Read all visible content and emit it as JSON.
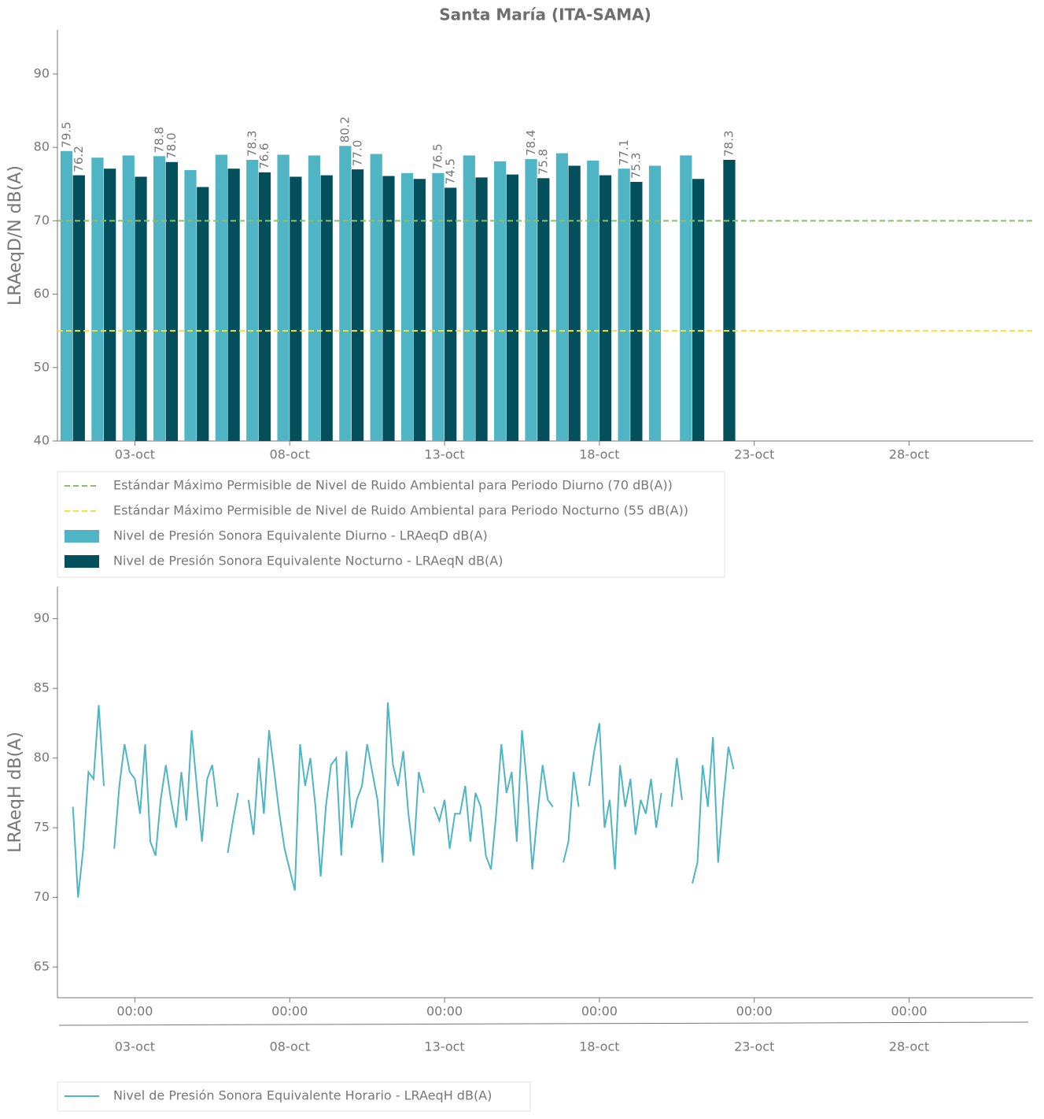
{
  "chart_data": [
    {
      "type": "bar",
      "title": "Santa María (ITA-SAMA)",
      "ylabel": "LRAeqD/N dB(A)",
      "x": [
        "01-oct",
        "02-oct",
        "03-oct",
        "04-oct",
        "05-oct",
        "06-oct",
        "07-oct",
        "08-oct",
        "09-oct",
        "10-oct",
        "11-oct",
        "12-oct",
        "13-oct",
        "14-oct",
        "15-oct",
        "16-oct",
        "17-oct",
        "18-oct",
        "19-oct",
        "20-oct",
        "21-oct",
        "22-oct"
      ],
      "series": [
        {
          "name": "Nivel de Presión Sonora Equivalente Diurno - LRAeqD dB(A)",
          "color": "#4fb5c4",
          "values": [
            79.5,
            78.6,
            78.9,
            78.8,
            76.9,
            79.0,
            78.3,
            79.0,
            78.9,
            80.2,
            79.1,
            76.5,
            76.5,
            78.9,
            78.1,
            78.4,
            79.2,
            78.2,
            77.1,
            77.5,
            78.9,
            null
          ],
          "value_labels": [
            "79.5",
            null,
            null,
            "78.8",
            null,
            null,
            "78.3",
            null,
            null,
            "80.2",
            null,
            null,
            "76.5",
            null,
            null,
            "78.4",
            null,
            null,
            "77.1",
            null,
            null,
            null
          ]
        },
        {
          "name": "Nivel de Presión Sonora Equivalente Nocturno - LRAeqN dB(A)",
          "color": "#03505c",
          "values": [
            76.2,
            77.1,
            76.0,
            78.0,
            74.6,
            77.1,
            76.6,
            76.0,
            76.2,
            77.0,
            76.1,
            75.7,
            74.5,
            75.9,
            76.3,
            75.8,
            77.5,
            76.2,
            75.3,
            null,
            75.7,
            78.3
          ],
          "value_labels": [
            "76.2",
            null,
            null,
            "78.0",
            null,
            null,
            "76.6",
            null,
            null,
            "77.0",
            null,
            null,
            "74.5",
            null,
            null,
            "75.8",
            null,
            null,
            "75.3",
            null,
            null,
            "78.3"
          ]
        }
      ],
      "hlines": [
        {
          "name": "Estándar Máximo Permisible de Nivel de Ruido Ambiental para Periodo Diurno (70 dB(A))",
          "value": 70,
          "color": "#8bbf6a"
        },
        {
          "name": "Estándar Máximo Permisible de Nivel de Ruido Ambiental para Periodo Nocturno (55 dB(A))",
          "value": 55,
          "color": "#f2e13a"
        }
      ],
      "xlim": [
        "30-sep 12:00",
        "01-nov 00:00"
      ],
      "xticks": [
        "03-oct",
        "08-oct",
        "13-oct",
        "18-oct",
        "23-oct",
        "28-oct"
      ],
      "ylim": [
        40,
        96
      ],
      "yticks": [
        40,
        50,
        60,
        70,
        80,
        90
      ]
    },
    {
      "type": "line",
      "ylabel": "LRAeqH dB(A)",
      "x": [
        "01-oct 00:00",
        "01-oct 04:00",
        "01-oct 08:00",
        "01-oct 12:00",
        "01-oct 16:00",
        "01-oct 20:00",
        "02-oct 00:00",
        "02-oct 04:00",
        "02-oct 08:00",
        "02-oct 12:00",
        "02-oct 16:00",
        "02-oct 20:00",
        "03-oct 00:00",
        "03-oct 04:00",
        "03-oct 08:00",
        "03-oct 12:00",
        "03-oct 16:00",
        "03-oct 20:00",
        "04-oct 00:00",
        "04-oct 04:00",
        "04-oct 08:00",
        "04-oct 12:00",
        "04-oct 16:00",
        "04-oct 20:00",
        "05-oct 00:00",
        "05-oct 04:00",
        "05-oct 08:00",
        "05-oct 12:00",
        "05-oct 16:00",
        "05-oct 20:00",
        "06-oct 00:00",
        "06-oct 04:00",
        "06-oct 08:00",
        "06-oct 12:00",
        "06-oct 16:00",
        "06-oct 20:00",
        "07-oct 00:00",
        "07-oct 04:00",
        "07-oct 08:00",
        "07-oct 12:00",
        "07-oct 16:00",
        "07-oct 20:00",
        "08-oct 00:00",
        "08-oct 04:00",
        "08-oct 08:00",
        "08-oct 12:00",
        "08-oct 16:00",
        "08-oct 20:00",
        "09-oct 00:00",
        "09-oct 04:00",
        "09-oct 08:00",
        "09-oct 12:00",
        "09-oct 16:00",
        "09-oct 20:00",
        "10-oct 00:00",
        "10-oct 04:00",
        "10-oct 08:00",
        "10-oct 12:00",
        "10-oct 16:00",
        "10-oct 20:00",
        "11-oct 00:00",
        "11-oct 04:00",
        "11-oct 08:00",
        "11-oct 12:00",
        "11-oct 16:00",
        "11-oct 20:00",
        "12-oct 00:00",
        "12-oct 04:00",
        "12-oct 08:00",
        "12-oct 12:00",
        "12-oct 16:00",
        "12-oct 20:00",
        "13-oct 00:00",
        "13-oct 04:00",
        "13-oct 08:00",
        "13-oct 12:00",
        "13-oct 16:00",
        "13-oct 20:00",
        "14-oct 00:00",
        "14-oct 04:00",
        "14-oct 08:00",
        "14-oct 12:00",
        "14-oct 16:00",
        "14-oct 20:00",
        "15-oct 00:00",
        "15-oct 04:00",
        "15-oct 08:00",
        "15-oct 12:00",
        "15-oct 16:00",
        "15-oct 20:00",
        "16-oct 00:00",
        "16-oct 04:00",
        "16-oct 08:00",
        "16-oct 12:00",
        "16-oct 16:00",
        "16-oct 20:00",
        "17-oct 00:00",
        "17-oct 04:00",
        "17-oct 08:00",
        "17-oct 12:00",
        "17-oct 16:00",
        "17-oct 20:00",
        "18-oct 00:00",
        "18-oct 04:00",
        "18-oct 08:00",
        "18-oct 12:00",
        "18-oct 16:00",
        "18-oct 20:00",
        "19-oct 00:00",
        "19-oct 04:00",
        "19-oct 08:00",
        "19-oct 12:00",
        "19-oct 16:00",
        "19-oct 20:00",
        "20-oct 00:00",
        "20-oct 04:00",
        "20-oct 08:00",
        "20-oct 12:00",
        "20-oct 16:00",
        "20-oct 20:00",
        "21-oct 00:00",
        "21-oct 04:00",
        "21-oct 08:00",
        "21-oct 12:00",
        "21-oct 16:00",
        "21-oct 20:00",
        "22-oct 00:00",
        "22-oct 04:00",
        "22-oct 08:00"
      ],
      "series": [
        {
          "name": "Nivel de Presión Sonora Equivalente Horario - LRAeqH dB(A)",
          "color": "#4fb5c4",
          "values": [
            76.5,
            70,
            73.5,
            79,
            78.5,
            83.8,
            78,
            null,
            73.5,
            78,
            81,
            79,
            78.5,
            76,
            81,
            74,
            73,
            77,
            79.5,
            77,
            75,
            79,
            75.5,
            82,
            78,
            74,
            78.5,
            79.5,
            76.5,
            null,
            73.2,
            75.5,
            77.5,
            null,
            77,
            74.5,
            80,
            76,
            82,
            79,
            76,
            73.5,
            72,
            70.5,
            81,
            78,
            80,
            76.5,
            71.5,
            76.5,
            79.5,
            80,
            73,
            80.5,
            75,
            77,
            78,
            81,
            79,
            77,
            72.5,
            84,
            79.5,
            78,
            80.5,
            76,
            73,
            79,
            77.5,
            null,
            76.5,
            75.5,
            77,
            73.5,
            76,
            76,
            78,
            74,
            77.5,
            76.5,
            73,
            72,
            76,
            81,
            77.5,
            79,
            74,
            82,
            78,
            72,
            76,
            79.5,
            77,
            76.5,
            null,
            72.5,
            74,
            79,
            76.5,
            null,
            78,
            80.5,
            82.5,
            75,
            77,
            72,
            79.5,
            76.5,
            78.5,
            74.5,
            77,
            76,
            78.5,
            75,
            77.5,
            null,
            76.5,
            80,
            77,
            null,
            71,
            72.5,
            79.5,
            76.5,
            81.5,
            72.5,
            77,
            80.8,
            79.2
          ]
        }
      ],
      "xlim": [
        "30-sep 12:00",
        "01-nov 00:00"
      ],
      "xticks": [
        {
          "value": "03-oct 00:00",
          "label": "00:00"
        },
        {
          "value": "08-oct 00:00",
          "label": "00:00"
        },
        {
          "value": "13-oct 00:00",
          "label": "00:00"
        },
        {
          "value": "18-oct 00:00",
          "label": "00:00"
        },
        {
          "value": "23-oct 00:00",
          "label": "00:00"
        },
        {
          "value": "28-oct 00:00",
          "label": "00:00"
        }
      ],
      "xticks2": [
        "03-oct",
        "08-oct",
        "13-oct",
        "18-oct",
        "23-oct",
        "28-oct"
      ],
      "ylim": [
        62.8,
        92.3
      ],
      "yticks": [
        65,
        70,
        75,
        80,
        85,
        90
      ]
    }
  ]
}
